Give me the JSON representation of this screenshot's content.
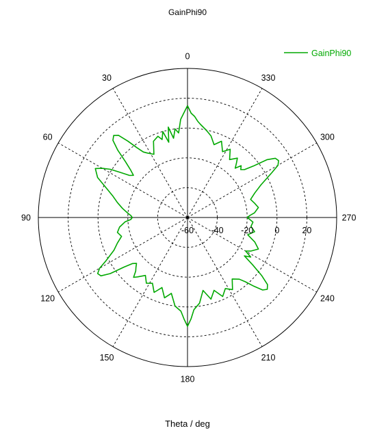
{
  "chart_data": {
    "type": "polar-line",
    "title": "GainPhi90",
    "xlabel": "Theta / deg",
    "angle_ticks": [
      "0",
      "30",
      "60",
      "90",
      "120",
      "150",
      "180",
      "210",
      "240",
      "270",
      "300",
      "330"
    ],
    "angle_tick_values": [
      0,
      30,
      60,
      90,
      120,
      150,
      180,
      210,
      240,
      270,
      300,
      330
    ],
    "angle_direction": "counter-clockwise",
    "zero_location": "top",
    "radial_ticks": [
      "-60",
      "-40",
      "-20",
      "0",
      "20"
    ],
    "radial_tick_values": [
      -60,
      -40,
      -20,
      0,
      20
    ],
    "radial_range": [
      -60,
      40
    ],
    "grid": true,
    "legend_position": "top-right",
    "series": [
      {
        "name": "GainPhi90",
        "color": "#00a800",
        "theta": [
          0,
          4,
          6,
          8,
          10,
          12,
          14,
          16,
          18,
          20,
          24,
          28,
          32,
          34,
          36,
          38,
          40,
          42,
          44,
          46,
          48,
          50,
          52,
          54,
          56,
          58,
          60,
          62,
          66,
          70,
          74,
          78,
          82,
          86,
          88,
          90,
          92,
          94,
          98,
          102,
          106,
          110,
          114,
          118,
          120,
          122,
          124,
          126,
          128,
          130,
          132,
          134,
          136,
          138,
          140,
          144,
          148,
          152,
          156,
          160,
          164,
          168,
          172,
          176,
          178,
          180,
          182,
          184,
          188,
          192,
          196,
          200,
          204,
          208,
          212,
          216,
          220,
          222,
          224,
          226,
          228,
          230,
          232,
          234,
          236,
          238,
          240,
          242,
          246,
          250,
          254,
          258,
          262,
          266,
          268,
          270,
          272,
          274,
          278,
          282,
          286,
          290,
          294,
          298,
          300,
          302,
          304,
          306,
          308,
          310,
          312,
          314,
          316,
          318,
          320,
          324,
          328,
          332,
          336,
          340,
          344,
          348,
          352,
          354,
          356,
          358
        ],
        "gain": [
          15,
          6,
          -3,
          0,
          -6,
          2,
          -8,
          0,
          -5,
          -2,
          -4,
          -12,
          -9,
          -7,
          -2,
          5,
          12,
          14,
          12,
          5,
          -4,
          -10,
          -14,
          -12,
          -6,
          1,
          6,
          10,
          6,
          -2,
          -8,
          -12,
          -16,
          -20,
          -22,
          -23,
          -22,
          -18,
          -14,
          -12,
          -14,
          -10,
          -6,
          2,
          8,
          11,
          10,
          4,
          -6,
          -12,
          -14,
          -12,
          -10,
          -6,
          -8,
          -12,
          -8,
          -10,
          -5,
          -10,
          -4,
          -8,
          0,
          3,
          8,
          13,
          8,
          2,
          -2,
          -10,
          -3,
          -8,
          -2,
          -6,
          -3,
          -9,
          -6,
          -2,
          4,
          10,
          12,
          10,
          3,
          -6,
          -14,
          -10,
          -15,
          -12,
          -8,
          -12,
          -18,
          -14,
          -17,
          -16,
          -18,
          -20,
          -18,
          -15,
          -12,
          -14,
          -16,
          -12,
          -6,
          4,
          10,
          12,
          11,
          6,
          -4,
          -10,
          -12,
          -10,
          -14,
          -11,
          -8,
          -12,
          -6,
          -10,
          -4,
          -8,
          -3,
          0,
          3,
          5,
          8,
          10
        ]
      }
    ]
  }
}
